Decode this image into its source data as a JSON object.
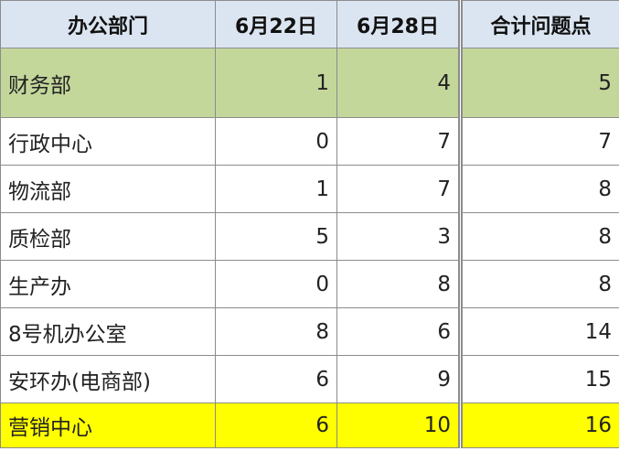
{
  "table": {
    "header": [
      "办公部门",
      "6月22日",
      "6月28日",
      "合计问题点"
    ],
    "rows": [
      [
        "财务部",
        1,
        4,
        5
      ],
      [
        "行政中心",
        0,
        7,
        7
      ],
      [
        "物流部",
        1,
        7,
        8
      ],
      [
        "质检部",
        5,
        3,
        8
      ],
      [
        "生产办",
        0,
        8,
        8
      ],
      [
        "8号机办公室",
        8,
        6,
        14
      ],
      [
        "安环办(电商部)",
        6,
        9,
        15
      ],
      [
        "营销中心",
        6,
        10,
        16
      ]
    ]
  }
}
